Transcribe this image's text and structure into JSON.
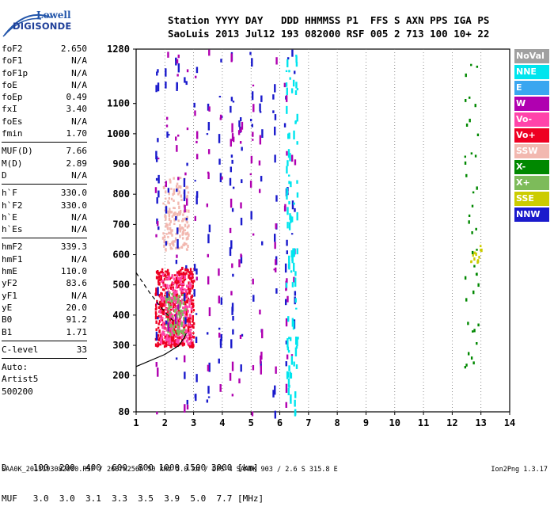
{
  "logo": {
    "line1": "Lowell",
    "line2": "DIGISONDE"
  },
  "header": {
    "line1": "Station YYYY DAY   DDD HHMMSS P1  FFS S AXN PPS IGA PS",
    "line2": "SaoLuis 2013 Jul12 193 082000 RSF 005 2 713 100 10+ 22"
  },
  "params": {
    "group1": [
      {
        "k": "foF2",
        "v": "2.650"
      },
      {
        "k": "foF1",
        "v": "N/A"
      },
      {
        "k": "foF1p",
        "v": "N/A"
      },
      {
        "k": "foE",
        "v": "N/A"
      },
      {
        "k": "foEp",
        "v": "0.49"
      },
      {
        "k": "fxI",
        "v": "3.40"
      },
      {
        "k": "foEs",
        "v": "N/A"
      },
      {
        "k": "fmin",
        "v": "1.70"
      }
    ],
    "group2": [
      {
        "k": "MUF(D)",
        "v": "7.66"
      },
      {
        "k": "M(D)",
        "v": "2.89"
      },
      {
        "k": "D",
        "v": "N/A"
      }
    ],
    "group3": [
      {
        "k": "h`F",
        "v": "330.0"
      },
      {
        "k": "h`F2",
        "v": "330.0"
      },
      {
        "k": "h`E",
        "v": "N/A"
      },
      {
        "k": "h`Es",
        "v": "N/A"
      }
    ],
    "group4": [
      {
        "k": "hmF2",
        "v": "339.3"
      },
      {
        "k": "hmF1",
        "v": "N/A"
      },
      {
        "k": "hmE",
        "v": "110.0"
      },
      {
        "k": "yF2",
        "v": "83.6"
      },
      {
        "k": "yF1",
        "v": "N/A"
      },
      {
        "k": "yE",
        "v": "20.0"
      },
      {
        "k": "B0",
        "v": "91.2"
      },
      {
        "k": "B1",
        "v": "1.71"
      }
    ],
    "group5": [
      {
        "k": "C-level",
        "v": "33"
      }
    ],
    "auto": [
      "Auto:",
      "Artist5",
      "500200"
    ]
  },
  "bottom": {
    "row1": "D     100  200  400  600  800 1000 1500 3000 [km]",
    "row2": "MUF   3.0  3.0  3.1  3.3  3.5  3.9  5.0  7.7 [MHz]"
  },
  "footer": "SAA0K_2013193082000.RSF / 260fx256h 50 kHz 5.0 km / DPS-4 SAA0K 903 / 2.6 S 315.8 E",
  "version": "Ion2Png 1.3.17",
  "legend": [
    {
      "label": "NoVal",
      "color": "#a0a0a0"
    },
    {
      "label": "NNE",
      "color": "#00e5ee"
    },
    {
      "label": "E",
      "color": "#3aa6f0"
    },
    {
      "label": "W",
      "color": "#b000b0"
    },
    {
      "label": "Vo-",
      "color": "#ff44aa"
    },
    {
      "label": "Vo+",
      "color": "#ee0022"
    },
    {
      "label": "SSW",
      "color": "#f2b8b0"
    },
    {
      "label": "X-",
      "color": "#008800"
    },
    {
      "label": "X+",
      "color": "#7dbb5a"
    },
    {
      "label": "SSE",
      "color": "#cccc00"
    },
    {
      "label": "NNW",
      "color": "#1a1acc"
    }
  ],
  "chart_data": {
    "type": "scatter",
    "title": "",
    "xlabel": "",
    "ylabel": "",
    "xlim": [
      1,
      14
    ],
    "ylim": [
      80,
      1280
    ],
    "xticks": [
      1,
      2,
      3,
      4,
      5,
      6,
      7,
      8,
      9,
      10,
      11,
      12,
      13,
      14
    ],
    "yticks": [
      80,
      200,
      300,
      400,
      500,
      600,
      700,
      800,
      900,
      1000,
      1100,
      1280
    ],
    "grid": "dotted vertical lines at integer frequencies",
    "legend_position": "right",
    "echo_regions": [
      {
        "name": "Vo+",
        "x_range": [
          1.65,
          3.0
        ],
        "y_range": [
          300,
          560
        ],
        "color": "#ee0022"
      },
      {
        "name": "Vo-",
        "x_range": [
          1.8,
          2.9
        ],
        "y_range": [
          310,
          540
        ],
        "color": "#ff44aa"
      },
      {
        "name": "SSW",
        "x_range": [
          1.9,
          2.8
        ],
        "y_range": [
          620,
          860
        ],
        "color": "#f2b8b0"
      },
      {
        "name": "X+",
        "x_range": [
          2.0,
          2.7
        ],
        "y_range": [
          340,
          480
        ],
        "color": "#7dbb5a"
      },
      {
        "name": "NNW",
        "x_range": [
          1.5,
          6.5
        ],
        "y_range": [
          80,
          1280
        ],
        "color": "#1a1acc"
      },
      {
        "name": "W",
        "x_range": [
          2.0,
          6.5
        ],
        "y_range": [
          80,
          1280
        ],
        "color": "#b000b0"
      },
      {
        "name": "NNE",
        "x_range": [
          6.2,
          6.6
        ],
        "y_range": [
          80,
          1280
        ],
        "color": "#00e5ee"
      },
      {
        "name": "X-",
        "x_range": [
          12.4,
          12.9
        ],
        "y_range": [
          200,
          1280
        ],
        "color": "#008800"
      },
      {
        "name": "SSE",
        "x_range": [
          12.6,
          13.0
        ],
        "y_range": [
          580,
          640
        ],
        "color": "#cccc00"
      }
    ],
    "profile_solid": [
      [
        1,
        230
      ],
      [
        2.0,
        270
      ],
      [
        2.5,
        300
      ],
      [
        2.7,
        330
      ],
      [
        2.75,
        340
      ]
    ],
    "profile_dashed": [
      [
        1,
        540
      ],
      [
        1.5,
        470
      ],
      [
        2.0,
        410
      ],
      [
        2.3,
        380
      ]
    ]
  }
}
